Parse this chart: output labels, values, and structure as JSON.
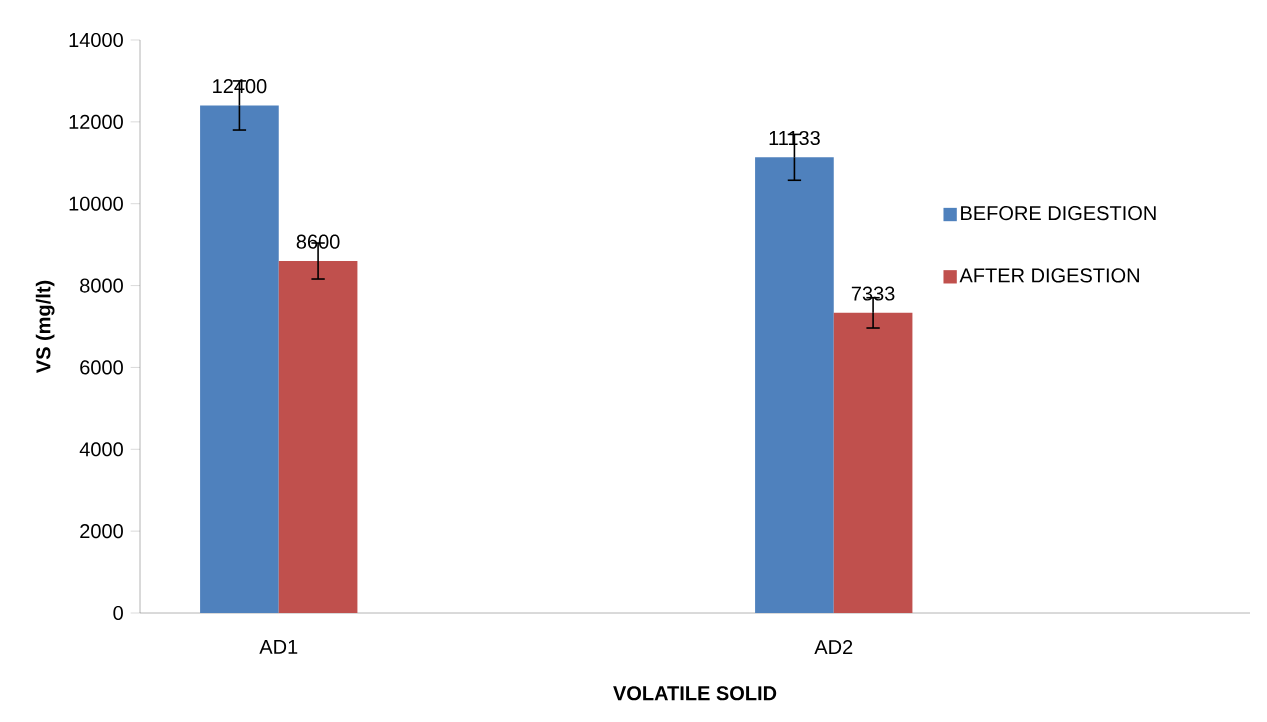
{
  "chart_data": {
    "type": "bar",
    "xlabel": "VOLATILE SOLID",
    "ylabel": "VS (mg/lt)",
    "categories": [
      "AD1",
      null,
      "AD2",
      null
    ],
    "series": [
      {
        "name": "BEFORE DIGESTION",
        "color": "#4f81bd",
        "values": [
          12400,
          null,
          11133,
          null
        ],
        "errors": [
          600,
          null,
          560,
          null
        ]
      },
      {
        "name": "AFTER DIGESTION",
        "color": "#c0504d",
        "values": [
          8600,
          null,
          7333,
          null
        ],
        "errors": [
          440,
          null,
          370,
          null
        ]
      }
    ],
    "ylim": [
      0,
      14000
    ],
    "yticks": [
      0,
      2000,
      4000,
      6000,
      8000,
      10000,
      12000,
      14000
    ],
    "data_labels": true,
    "legend": "right",
    "grid": false
  }
}
